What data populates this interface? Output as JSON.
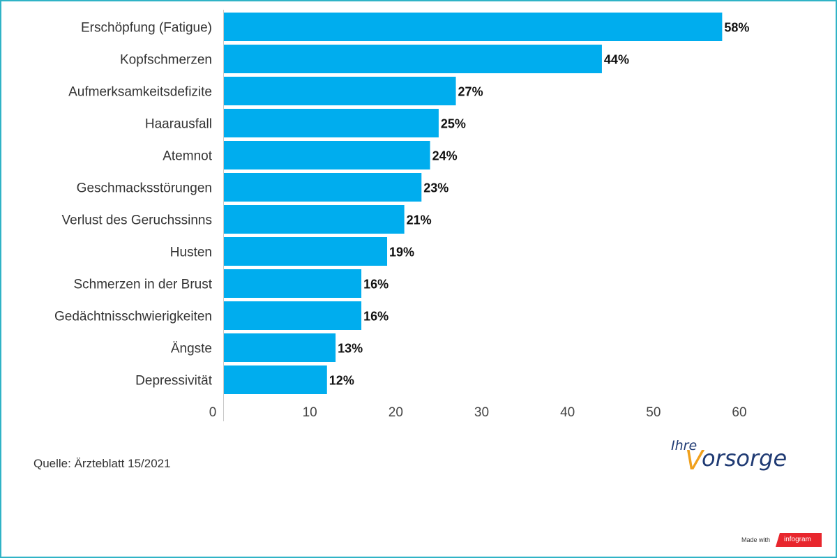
{
  "chart_data": {
    "type": "bar",
    "orientation": "horizontal",
    "categories": [
      "Erschöpfung (Fatigue)",
      "Kopfschmerzen",
      "Aufmerksamkeitsdefizite",
      "Haarausfall",
      "Atemnot",
      "Geschmacksstörungen",
      "Verlust des Geruchssinns",
      "Husten",
      "Schmerzen in der Brust",
      "Gedächtnisschwierigkeiten",
      "Ängste",
      "Depressivität"
    ],
    "values": [
      58,
      44,
      27,
      25,
      24,
      23,
      21,
      19,
      16,
      16,
      13,
      12
    ],
    "data_labels": [
      "58%",
      "44%",
      "27%",
      "25%",
      "24%",
      "23%",
      "21%",
      "19%",
      "16%",
      "16%",
      "13%",
      "12%"
    ],
    "xlim": [
      0,
      60
    ],
    "xticks": [
      0,
      10,
      20,
      30,
      40,
      50,
      60
    ],
    "bar_color": "#00adee",
    "grid": false,
    "title": "",
    "xlabel": "",
    "ylabel": ""
  },
  "source": "Quelle: Ärzteblatt 15/2021",
  "brand": {
    "prefix": "Ihre",
    "first_letter": "V",
    "rest": "orsorge",
    "colors": {
      "navy": "#1f3a73",
      "orange": "#f0a01c"
    }
  },
  "footer": {
    "made_with": "Made with",
    "infogram": "infogram",
    "infogram_color": "#e8262d"
  },
  "frame_color": "#2fb3c6"
}
